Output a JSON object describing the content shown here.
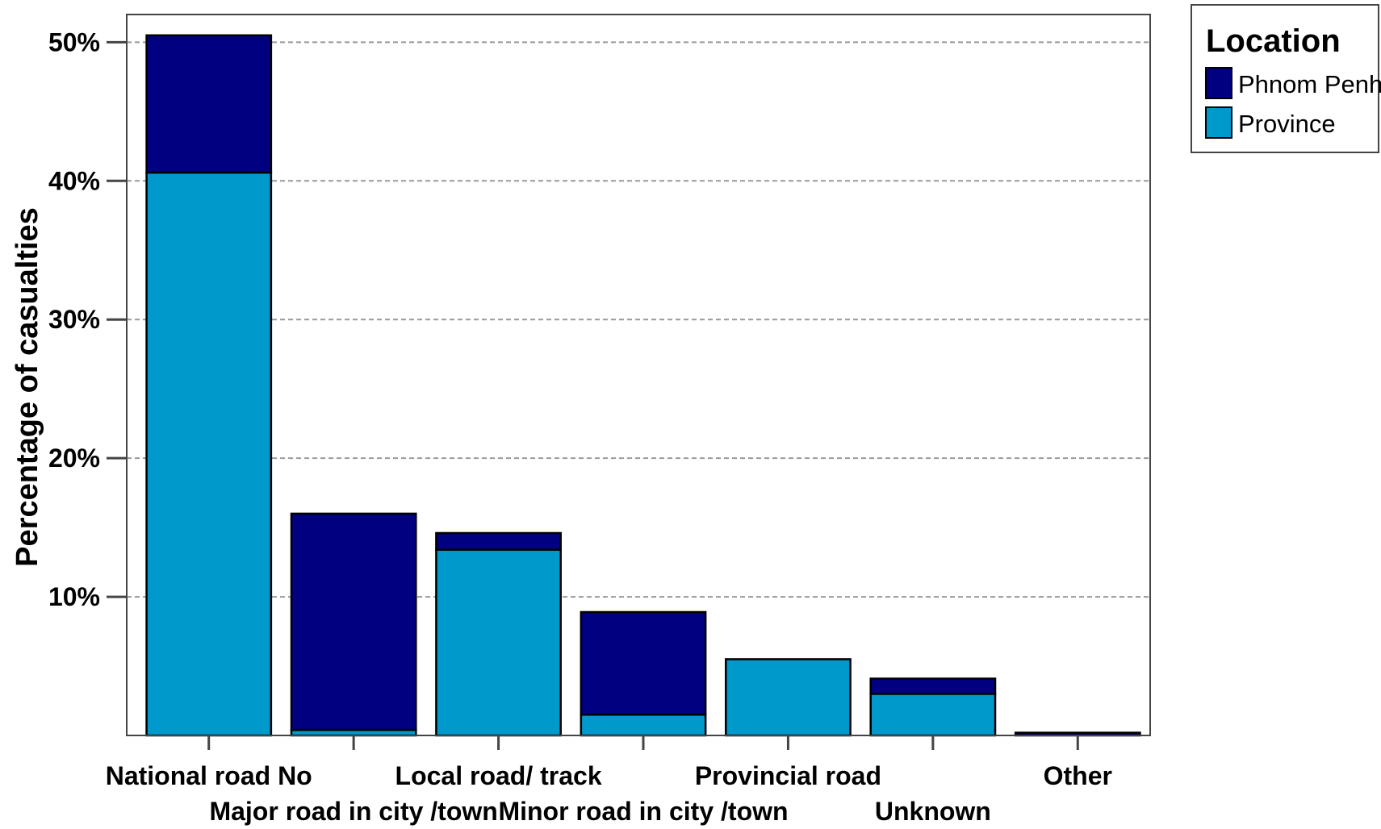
{
  "chart_data": {
    "type": "bar",
    "stacked": true,
    "ylabel": "Percentage of casualties",
    "ylim": [
      0,
      52
    ],
    "yticks": [
      10,
      20,
      30,
      40,
      50
    ],
    "ytick_labels": [
      "10%",
      "20%",
      "30%",
      "40%",
      "50%"
    ],
    "grid": "horizontal-dashed",
    "categories": [
      "National road No",
      "Major road in city /town",
      "Local road/ track",
      "Minor road in city /town",
      "Provincial road",
      "Unknown",
      "Other"
    ],
    "series": [
      {
        "name": "Province",
        "color": "#0099CC",
        "values": [
          40.6,
          0.4,
          13.4,
          1.5,
          5.5,
          3.0,
          0.0
        ]
      },
      {
        "name": "Phnom Penh",
        "color": "#000080",
        "values": [
          9.9,
          15.6,
          1.2,
          7.4,
          0.0,
          1.1,
          0.2
        ]
      }
    ],
    "legend": {
      "title": "Location",
      "position": "top-right",
      "entries": [
        "Phnom Penh",
        "Province"
      ]
    }
  }
}
